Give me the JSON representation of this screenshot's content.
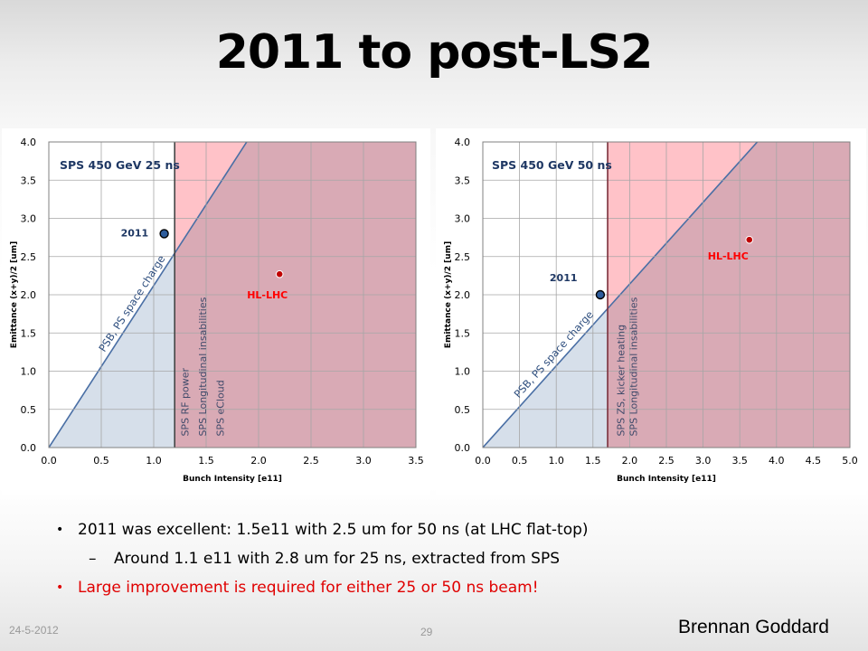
{
  "slide": {
    "title": "2011 to post-LS2",
    "bullets": [
      {
        "level": 1,
        "text": "2011 was excellent: 1.5e11 with 2.5 um for 50 ns (at LHC flat-top)",
        "color": "#000000"
      },
      {
        "level": 2,
        "text": "Around 1.1 e11 with 2.8 um for 25 ns, extracted from SPS",
        "color": "#000000"
      },
      {
        "level": 1,
        "text": "Large improvement is required for either 25 or 50 ns beam!",
        "color": "#e00000"
      }
    ],
    "footer": {
      "date": "24-5-2012",
      "page": "29",
      "author": "Brennan Goddard"
    }
  },
  "chart_data": [
    {
      "type": "scatter",
      "title": "SPS 450 GeV 25 ns",
      "xlabel": "Bunch Intensity [e11]",
      "ylabel": "Emittance (x+y)/2 [um]",
      "xlim": [
        0,
        3.5
      ],
      "ylim": [
        0,
        4.0
      ],
      "xticks": [
        "0.0",
        "0.5",
        "1.0",
        "1.5",
        "2.0",
        "2.5",
        "3.0",
        "3.5"
      ],
      "yticks": [
        "0.0",
        "0.5",
        "1.0",
        "1.5",
        "2.0",
        "2.5",
        "3.0",
        "3.5",
        "4.0"
      ],
      "points": [
        {
          "label": "2011",
          "x": 1.1,
          "y": 2.8,
          "color": "#1f4e79",
          "label_color": "#1f3864"
        },
        {
          "label": "HL-LHC",
          "x": 2.2,
          "y": 2.27,
          "color": "#c00000",
          "label_color": "#ff0000"
        }
      ],
      "space_charge_line": {
        "label": "PSB, PS space charge",
        "slope": 2.12
      },
      "vertical_limit": {
        "x": 1.2,
        "labels": [
          "SPS RF power",
          "SPS Longitudinal insabilities",
          "SPS eCloud"
        ]
      },
      "colors": {
        "blue_region": "#d6dfea",
        "pink_region": "#ffc2c8",
        "mauve_region": "#d9aab5",
        "line": "#4a6fa5",
        "limit": "#444444"
      }
    },
    {
      "type": "scatter",
      "title": "SPS 450 GeV 50 ns",
      "xlabel": "Bunch Intensity [e11]",
      "ylabel": "Emittance (x+y)/2 [um]",
      "xlim": [
        0,
        5.0
      ],
      "ylim": [
        0,
        4.0
      ],
      "xticks": [
        "0.0",
        "0.5",
        "1.0",
        "1.5",
        "2.0",
        "2.5",
        "3.0",
        "3.5",
        "4.0",
        "4.5",
        "5.0"
      ],
      "yticks": [
        "0.0",
        "0.5",
        "1.0",
        "1.5",
        "2.0",
        "2.5",
        "3.0",
        "3.5",
        "4.0"
      ],
      "points": [
        {
          "label": "2011",
          "x": 1.6,
          "y": 2.0,
          "color": "#1f4e79",
          "label_color": "#1f3864"
        },
        {
          "label": "HL-LHC",
          "x": 3.63,
          "y": 2.72,
          "color": "#c00000",
          "label_color": "#ff0000"
        }
      ],
      "space_charge_line": {
        "label": "PSB, PS space charge",
        "slope": 1.07
      },
      "vertical_limit": {
        "x": 1.7,
        "labels": [
          "SPS ZS, kicker heating",
          "SPS Longitudinal insabilities"
        ]
      },
      "colors": {
        "blue_region": "#d6dfea",
        "pink_region": "#ffc2c8",
        "mauve_region": "#d9aab5",
        "line": "#4a6fa5",
        "limit": "#7b2e3a"
      }
    }
  ]
}
